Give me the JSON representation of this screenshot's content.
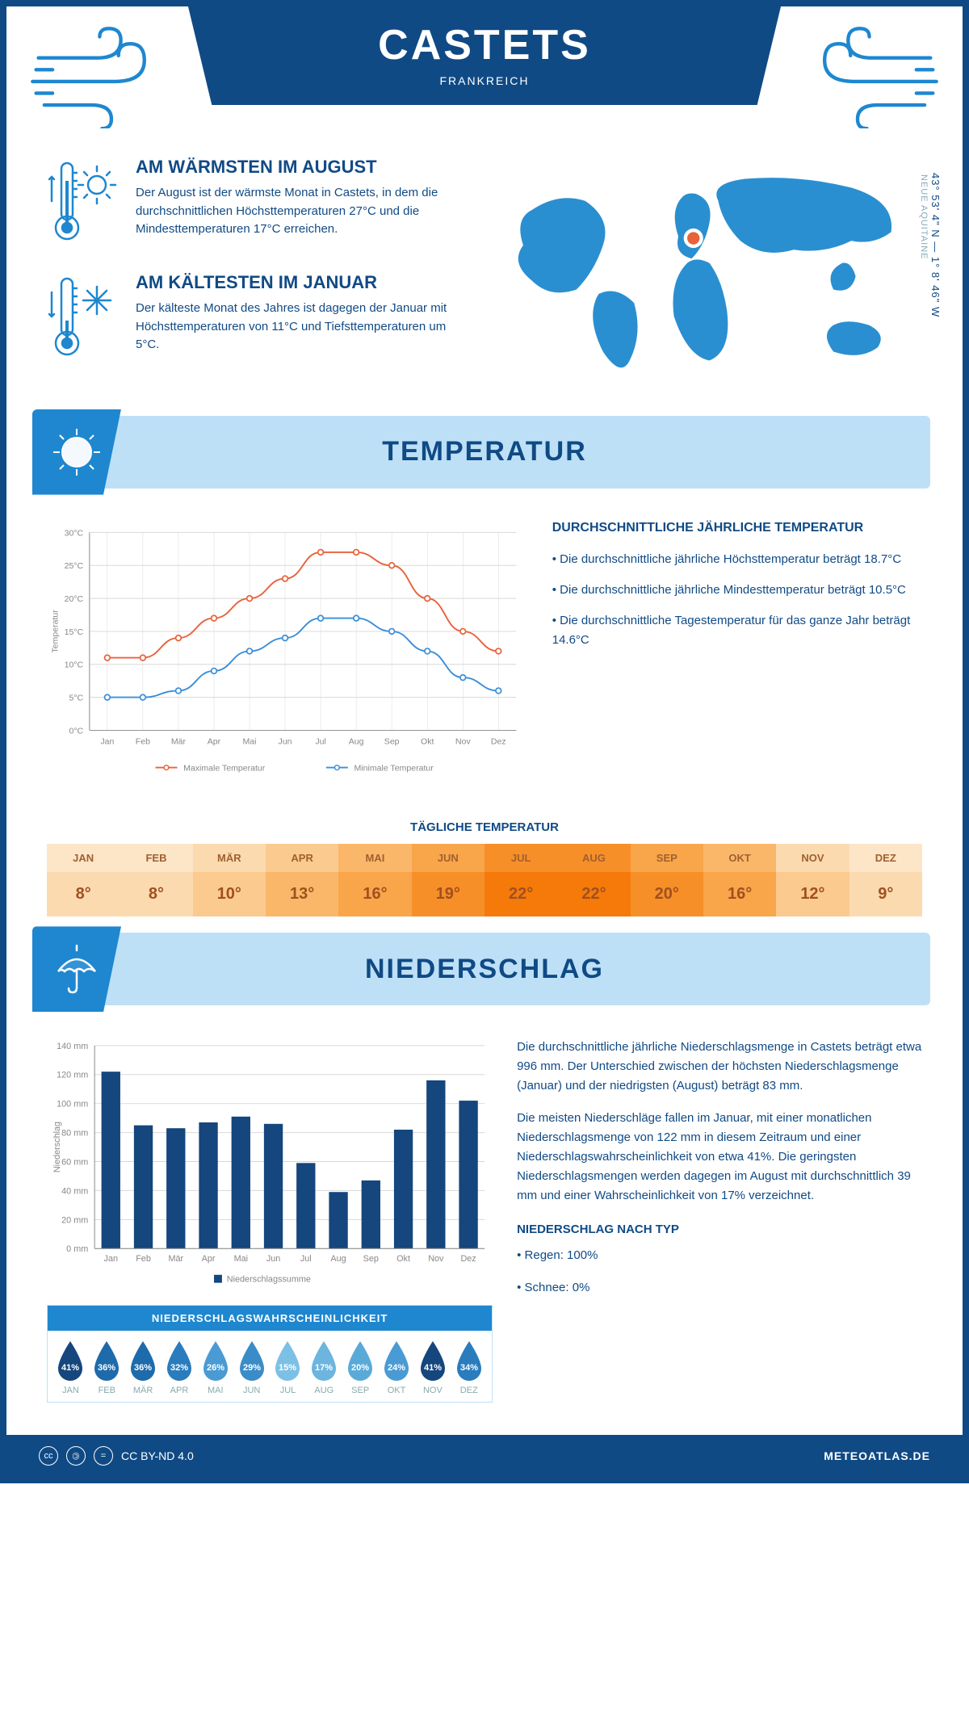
{
  "colors": {
    "primary": "#104a85",
    "light_blue": "#bde0f7",
    "accent_blue": "#1e87d0",
    "max_line": "#e8623a",
    "min_line": "#3a8fd8",
    "bar_color": "#15467d",
    "grid": "#d8d8d8"
  },
  "header": {
    "city": "CASTETS",
    "country": "FRANKREICH"
  },
  "facts": {
    "warm": {
      "title": "AM WÄRMSTEN IM AUGUST",
      "text": "Der August ist der wärmste Monat in Castets, in dem die durchschnittlichen Höchsttemperaturen 27°C und die Mindesttemperaturen 17°C erreichen."
    },
    "cold": {
      "title": "AM KÄLTESTEN IM JANUAR",
      "text": "Der kälteste Monat des Jahres ist dagegen der Januar mit Höchsttemperaturen von 11°C und Tiefsttemperaturen um 5°C."
    }
  },
  "coords": "43° 53' 4\" N — 1° 8' 46\" W",
  "region": "NEUE AQUITAINE",
  "sections": {
    "temp": "TEMPERATUR",
    "precip": "NIEDERSCHLAG"
  },
  "months": [
    "Jan",
    "Feb",
    "Mär",
    "Apr",
    "Mai",
    "Jun",
    "Jul",
    "Aug",
    "Sep",
    "Okt",
    "Nov",
    "Dez"
  ],
  "months_uc": [
    "JAN",
    "FEB",
    "MÄR",
    "APR",
    "MAI",
    "JUN",
    "JUL",
    "AUG",
    "SEP",
    "OKT",
    "NOV",
    "DEZ"
  ],
  "temp_chart": {
    "type": "line",
    "ylabel": "Temperatur",
    "ylim": [
      0,
      30
    ],
    "yticks": [
      "0°C",
      "5°C",
      "10°C",
      "15°C",
      "20°C",
      "25°C",
      "30°C"
    ],
    "max_series": {
      "label": "Maximale Temperatur",
      "values": [
        11,
        11,
        14,
        17,
        20,
        23,
        27,
        27,
        25,
        20,
        15,
        12
      ]
    },
    "min_series": {
      "label": "Minimale Temperatur",
      "values": [
        5,
        5,
        6,
        9,
        12,
        14,
        17,
        17,
        15,
        12,
        8,
        6
      ]
    }
  },
  "temp_text": {
    "title": "DURCHSCHNITTLICHE JÄHRLICHE TEMPERATUR",
    "b1": "• Die durchschnittliche jährliche Höchsttemperatur beträgt 18.7°C",
    "b2": "• Die durchschnittliche jährliche Mindesttemperatur beträgt 10.5°C",
    "b3": "• Die durchschnittliche Tagestemperatur für das ganze Jahr beträgt 14.6°C"
  },
  "daily_temp": {
    "title": "TÄGLICHE TEMPERATUR",
    "values": [
      "8°",
      "8°",
      "10°",
      "13°",
      "16°",
      "19°",
      "22°",
      "22°",
      "20°",
      "16°",
      "12°",
      "9°"
    ],
    "head_colors": [
      "#fde5c8",
      "#fde5c8",
      "#fcdab0",
      "#fbca8f",
      "#fab76a",
      "#f9a54a",
      "#f78f28",
      "#f78f28",
      "#f9a54a",
      "#fab76a",
      "#fcdab0",
      "#fde5c8"
    ],
    "val_colors": [
      "#fcdab0",
      "#fcdab0",
      "#fbca8f",
      "#fab76a",
      "#f9a54a",
      "#f78f28",
      "#f57a0a",
      "#f57a0a",
      "#f78f28",
      "#f9a54a",
      "#fbca8f",
      "#fcdab0"
    ]
  },
  "precip_chart": {
    "type": "bar",
    "ylabel": "Niederschlag",
    "ylim": [
      0,
      140
    ],
    "ytick_step": 20,
    "yticks": [
      "0 mm",
      "20 mm",
      "40 mm",
      "60 mm",
      "80 mm",
      "100 mm",
      "120 mm",
      "140 mm"
    ],
    "values": [
      122,
      85,
      83,
      87,
      91,
      86,
      59,
      39,
      47,
      82,
      116,
      102
    ],
    "legend": "Niederschlagssumme"
  },
  "prob": {
    "title": "NIEDERSCHLAGSWAHRSCHEINLICHKEIT",
    "values": [
      "41%",
      "36%",
      "36%",
      "32%",
      "26%",
      "29%",
      "15%",
      "17%",
      "20%",
      "24%",
      "41%",
      "34%"
    ],
    "colors": [
      "#15467d",
      "#1e6bab",
      "#1e6bab",
      "#2a7cbd",
      "#4a9bd4",
      "#3a8cc8",
      "#7cc0e5",
      "#6cb5de",
      "#5aaad8",
      "#4a9bd4",
      "#15467d",
      "#2a7cbd"
    ]
  },
  "precip_text": {
    "p1": "Die durchschnittliche jährliche Niederschlagsmenge in Castets beträgt etwa 996 mm. Der Unterschied zwischen der höchsten Niederschlagsmenge (Januar) und der niedrigsten (August) beträgt 83 mm.",
    "p2": "Die meisten Niederschläge fallen im Januar, mit einer monatlichen Niederschlagsmenge von 122 mm in diesem Zeitraum und einer Niederschlagswahrscheinlichkeit von etwa 41%. Die geringsten Niederschlagsmengen werden dagegen im August mit durchschnittlich 39 mm und einer Wahrscheinlichkeit von 17% verzeichnet.",
    "type_title": "NIEDERSCHLAG NACH TYP",
    "t1": "• Regen: 100%",
    "t2": "• Schnee: 0%"
  },
  "footer": {
    "license": "CC BY-ND 4.0",
    "site": "METEOATLAS.DE"
  }
}
